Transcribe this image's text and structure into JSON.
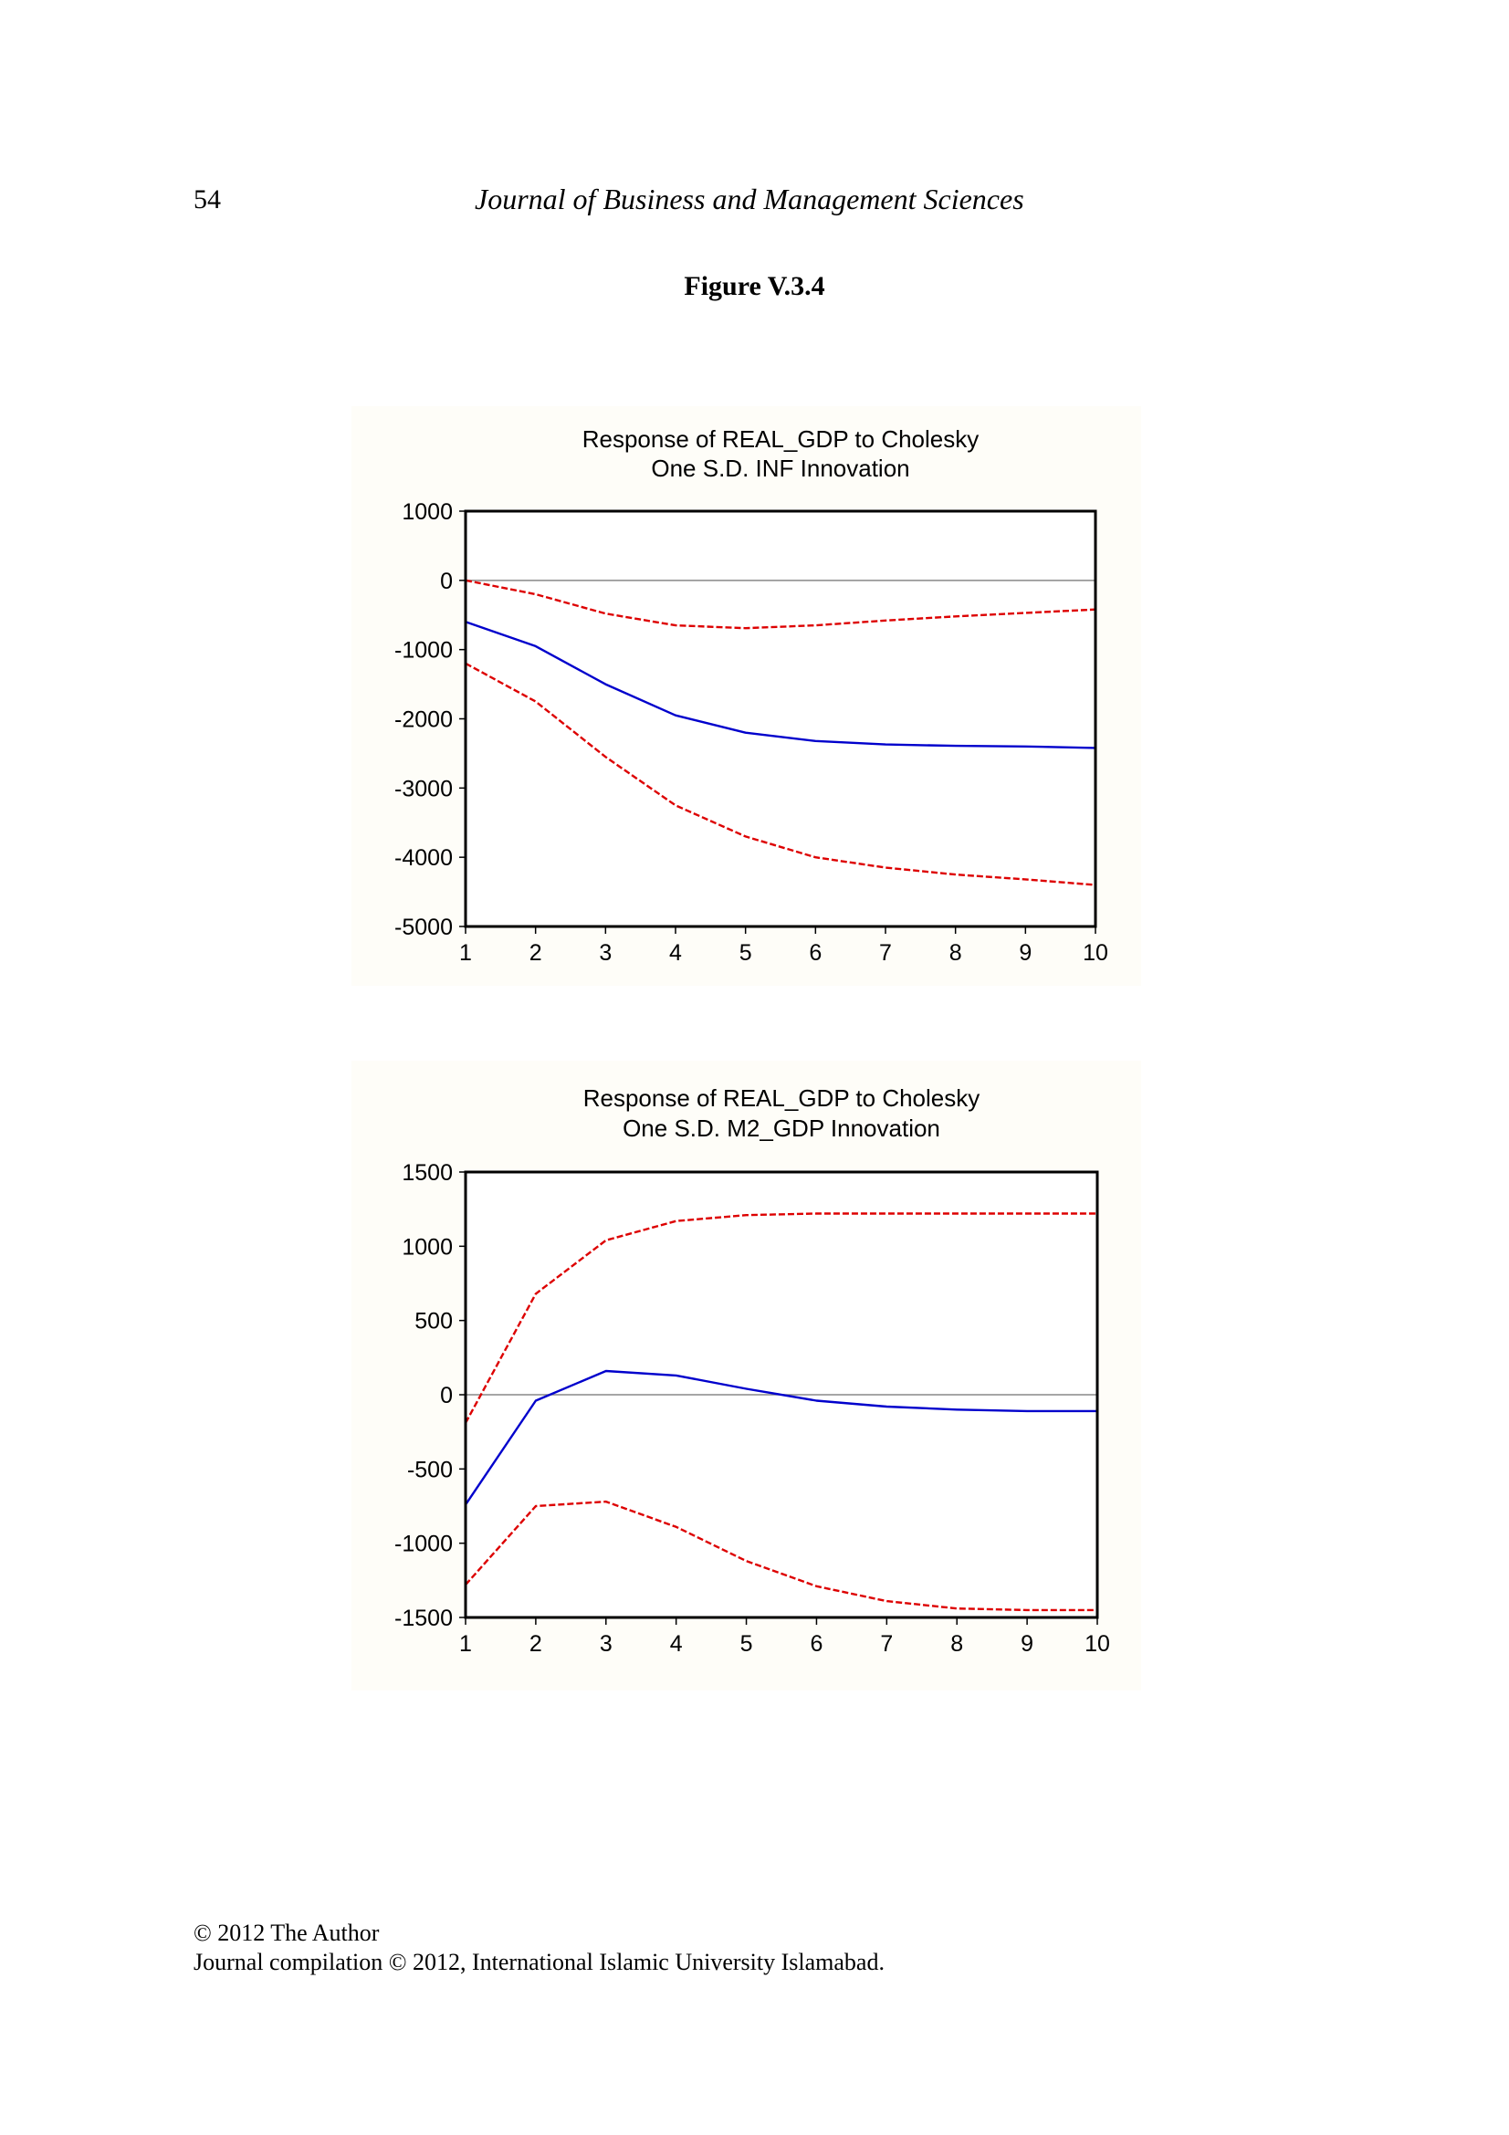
{
  "header": {
    "page_number": "54",
    "journal_title": "Journal of Business and Management Sciences"
  },
  "figure_label": "Figure V.3.4",
  "footer": {
    "line1": "© 2012 The Author",
    "line2": "Journal compilation © 2012, International Islamic University Islamabad."
  },
  "colors": {
    "response_line": "#0000cc",
    "confidence_band": "#dd0000",
    "zero_line": "#888888"
  },
  "chart_data": [
    {
      "type": "line",
      "title_line1": "Response of REAL_GDP to Cholesky",
      "title_line2": "One S.D. INF Innovation",
      "x": [
        1,
        2,
        3,
        4,
        5,
        6,
        7,
        8,
        9,
        10
      ],
      "x_tick_labels": [
        "1",
        "2",
        "3",
        "4",
        "5",
        "6",
        "7",
        "8",
        "9",
        "10"
      ],
      "y_ticks": [
        1000,
        0,
        -1000,
        -2000,
        -3000,
        -4000,
        -5000
      ],
      "y_tick_labels": [
        "1000",
        "0",
        "-1000",
        "-2000",
        "-3000",
        "-4000",
        "-5000"
      ],
      "ylim": [
        -5000,
        1000
      ],
      "xlim": [
        1,
        10
      ],
      "zero_line": true,
      "grid": false,
      "series": [
        {
          "style": "solid",
          "color": "#0000cc",
          "values": [
            -600,
            -950,
            -1500,
            -1950,
            -2200,
            -2320,
            -2370,
            -2390,
            -2400,
            -2420
          ]
        },
        {
          "style": "dashed",
          "color": "#dd0000",
          "values": [
            0,
            -200,
            -480,
            -650,
            -690,
            -650,
            -580,
            -520,
            -470,
            -420
          ]
        },
        {
          "style": "dashed",
          "color": "#dd0000",
          "values": [
            -1200,
            -1750,
            -2550,
            -3250,
            -3700,
            -4000,
            -4150,
            -4250,
            -4320,
            -4400
          ]
        }
      ]
    },
    {
      "type": "line",
      "title_line1": "Response of REAL_GDP to Cholesky",
      "title_line2": "One S.D. M2_GDP Innovation",
      "x": [
        1,
        2,
        3,
        4,
        5,
        6,
        7,
        8,
        9,
        10
      ],
      "x_tick_labels": [
        "1",
        "2",
        "3",
        "4",
        "5",
        "6",
        "7",
        "8",
        "9",
        "10"
      ],
      "y_ticks": [
        1500,
        1000,
        500,
        0,
        -500,
        -1000,
        -1500
      ],
      "y_tick_labels": [
        "1500",
        "1000",
        "500",
        "0",
        "-500",
        "-1000",
        "-1500"
      ],
      "ylim": [
        -1500,
        1500
      ],
      "xlim": [
        1,
        10
      ],
      "zero_line": true,
      "grid": false,
      "series": [
        {
          "style": "solid",
          "color": "#0000cc",
          "values": [
            -740,
            -40,
            160,
            130,
            40,
            -40,
            -80,
            -100,
            -110,
            -110
          ]
        },
        {
          "style": "dashed",
          "color": "#dd0000",
          "values": [
            -190,
            680,
            1040,
            1170,
            1210,
            1220,
            1220,
            1220,
            1220,
            1220
          ]
        },
        {
          "style": "dashed",
          "color": "#dd0000",
          "values": [
            -1280,
            -750,
            -720,
            -890,
            -1120,
            -1290,
            -1390,
            -1440,
            -1450,
            -1450
          ]
        }
      ]
    }
  ]
}
